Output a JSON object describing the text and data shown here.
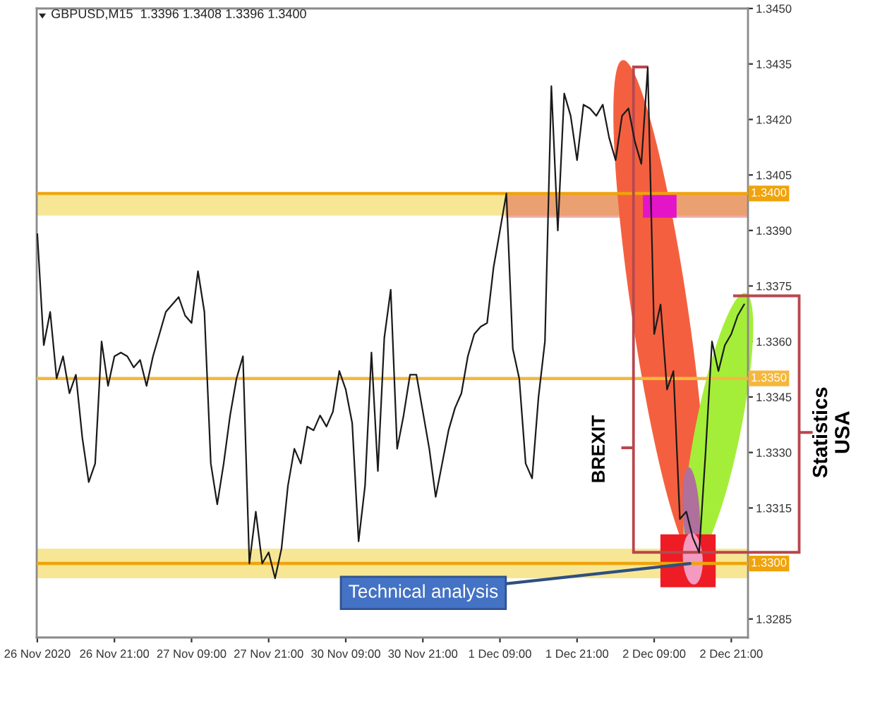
{
  "chart_data": {
    "type": "line",
    "title": "GBPUSD,M15  1.3396 1.3408 1.3396 1.3400",
    "categories": [
      "26 Nov 2020",
      null,
      null,
      null,
      null,
      null,
      null,
      null,
      null,
      null,
      null,
      null,
      "26 Nov 21:00",
      null,
      null,
      null,
      null,
      null,
      null,
      null,
      null,
      null,
      null,
      null,
      "27 Nov 09:00",
      null,
      null,
      null,
      null,
      null,
      null,
      null,
      null,
      null,
      null,
      null,
      "27 Nov 21:00",
      null,
      null,
      null,
      null,
      null,
      null,
      null,
      null,
      null,
      null,
      null,
      "30 Nov 09:00",
      null,
      null,
      null,
      null,
      null,
      null,
      null,
      null,
      null,
      null,
      null,
      "30 Nov 21:00",
      null,
      null,
      null,
      null,
      null,
      null,
      null,
      null,
      null,
      null,
      null,
      "1 Dec 09:00",
      null,
      null,
      null,
      null,
      null,
      null,
      null,
      null,
      null,
      null,
      null,
      "1 Dec 21:00",
      null,
      null,
      null,
      null,
      null,
      null,
      null,
      null,
      null,
      null,
      null,
      "2 Dec 09:00",
      null,
      null,
      null,
      null,
      null,
      null,
      null,
      null,
      null,
      null,
      null,
      "2 Dec 21:00",
      null,
      null
    ],
    "values": [
      1.3389,
      1.3359,
      1.3368,
      1.335,
      1.3356,
      1.3346,
      1.3351,
      1.3334,
      1.3322,
      1.3327,
      1.336,
      1.3348,
      1.3356,
      1.3357,
      1.3356,
      1.3353,
      1.3355,
      1.3348,
      1.3356,
      1.3362,
      1.3368,
      1.337,
      1.3372,
      1.3367,
      1.3365,
      1.3379,
      1.3368,
      1.3327,
      1.3316,
      1.3327,
      1.334,
      1.335,
      1.3356,
      1.33,
      1.3314,
      1.33,
      1.3303,
      1.3296,
      1.3304,
      1.3321,
      1.3331,
      1.3327,
      1.3337,
      1.3336,
      1.334,
      1.3337,
      1.3341,
      1.3352,
      1.3347,
      1.3338,
      1.3306,
      1.3321,
      1.3357,
      1.3325,
      1.3361,
      1.3374,
      1.3331,
      1.334,
      1.3351,
      1.3351,
      1.3341,
      1.3331,
      1.3318,
      1.3327,
      1.3336,
      1.3342,
      1.3346,
      1.3356,
      1.3362,
      1.3364,
      1.3365,
      1.338,
      1.339,
      1.34,
      1.3358,
      1.335,
      1.3327,
      1.3323,
      1.3345,
      1.336,
      1.3429,
      1.339,
      1.3427,
      1.3421,
      1.3409,
      1.3424,
      1.3423,
      1.3421,
      1.3424,
      1.3415,
      1.3409,
      1.3421,
      1.3423,
      1.3414,
      1.3408,
      1.3434,
      1.3362,
      1.337,
      1.3347,
      1.3352,
      1.3312,
      1.3314,
      1.3307,
      1.3303,
      1.333,
      1.336,
      1.3352,
      1.3359,
      1.3362,
      1.3367,
      1.337
    ],
    "color": "#1a1a1a",
    "ylim": [
      1.328,
      1.345
    ],
    "yticks": [
      1.3285,
      1.3315,
      {
        "value": 1.333,
        "label": "1.3330"
      },
      1.3345,
      {
        "value": 1.336,
        "label": "1.3360"
      },
      1.3375,
      {
        "value": 1.339,
        "label": "1.3390"
      },
      1.3405,
      {
        "value": 1.342,
        "label": "1.3420"
      },
      1.3435,
      {
        "value": 1.345,
        "label": "1.3450"
      }
    ],
    "ref_lines": [
      {
        "axis": "y",
        "value": 1.34,
        "label": "1.3400",
        "color": "#f0a30a"
      },
      {
        "axis": "y",
        "value": 1.335,
        "label": "1.3350",
        "color": "#f5b73c"
      },
      {
        "axis": "y",
        "value": 1.33,
        "label": "1.3300",
        "color": "#f0a30a"
      }
    ],
    "bands": [
      {
        "axis": "y",
        "from": 1.3394,
        "to": 1.34,
        "color": "#f7e795"
      },
      {
        "axis": "y",
        "from": 1.3296,
        "to": 1.3304,
        "color": "#f7e795"
      }
    ],
    "annotations": [
      "BREXIT",
      "Statistics\nUSA",
      {
        "text": "Technical analysis",
        "y": 1.33
      }
    ]
  }
}
